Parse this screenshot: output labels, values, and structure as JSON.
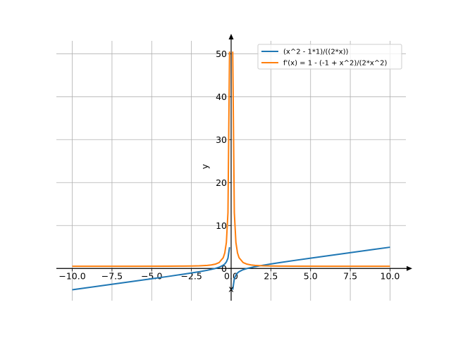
{
  "chart_data": {
    "type": "line",
    "title": "",
    "xlabel": "x",
    "ylabel": "y",
    "xlim": [
      -11,
      11
    ],
    "ylim": [
      -7.5,
      53
    ],
    "grid": true,
    "legend_position": "top-right",
    "x_ticks": [
      -10,
      -7.5,
      -5,
      -2.5,
      0,
      2.5,
      5,
      7.5,
      10
    ],
    "x_tick_labels": [
      "−10.0",
      "−7.5",
      "−5.0",
      "−2.5",
      "0.0",
      "2.5",
      "5.0",
      "7.5",
      "10.0"
    ],
    "y_ticks": [
      0,
      10,
      20,
      30,
      40,
      50
    ],
    "y_tick_labels": [
      "0",
      "10",
      "20",
      "30",
      "40",
      "50"
    ],
    "series": [
      {
        "name": "(x^2 - 1*1)/((2*x))",
        "color": "#1f77b4",
        "x": [
          -10,
          -9,
          -8,
          -7,
          -6,
          -5,
          -4,
          -3,
          -2.5,
          -2,
          -1.5,
          -1,
          -0.75,
          -0.5,
          -0.4,
          -0.3,
          -0.2,
          -0.1,
          0.1,
          0.2,
          0.3,
          0.4,
          0.5,
          0.75,
          1,
          1.5,
          2,
          2.5,
          3,
          4,
          5,
          6,
          7,
          8,
          9,
          10
        ],
        "y": [
          -4.95,
          -4.444,
          -3.938,
          -3.429,
          -2.917,
          -2.4,
          -1.875,
          -1.333,
          -1.05,
          -0.75,
          -0.417,
          0,
          0.292,
          0.75,
          1.05,
          1.517,
          2.4,
          4.95,
          -4.95,
          -2.4,
          -1.517,
          -1.05,
          -0.75,
          -0.292,
          0,
          0.417,
          0.75,
          1.05,
          1.333,
          1.875,
          2.4,
          2.917,
          3.429,
          3.938,
          4.444,
          4.95
        ]
      },
      {
        "name": "f'(x) = 1 - (-1 + x^2)/(2*x^2)",
        "color": "#ff7f0e",
        "x": [
          -10,
          -8,
          -6,
          -4,
          -3,
          -2.5,
          -2,
          -1.5,
          -1.25,
          -1,
          -0.75,
          -0.5,
          -0.4,
          -0.3,
          -0.2,
          -0.1,
          0.1,
          0.2,
          0.3,
          0.4,
          0.5,
          0.75,
          1,
          1.25,
          1.5,
          2,
          2.5,
          3,
          4,
          6,
          8,
          10
        ],
        "y": [
          0.505,
          0.508,
          0.514,
          0.531,
          0.556,
          0.58,
          0.625,
          0.722,
          0.82,
          1,
          1.389,
          2.5,
          3.625,
          6.056,
          13,
          50.5,
          50.5,
          13,
          6.056,
          3.625,
          2.5,
          1.389,
          1,
          0.82,
          0.722,
          0.625,
          0.58,
          0.556,
          0.531,
          0.514,
          0.508,
          0.505
        ]
      }
    ]
  }
}
